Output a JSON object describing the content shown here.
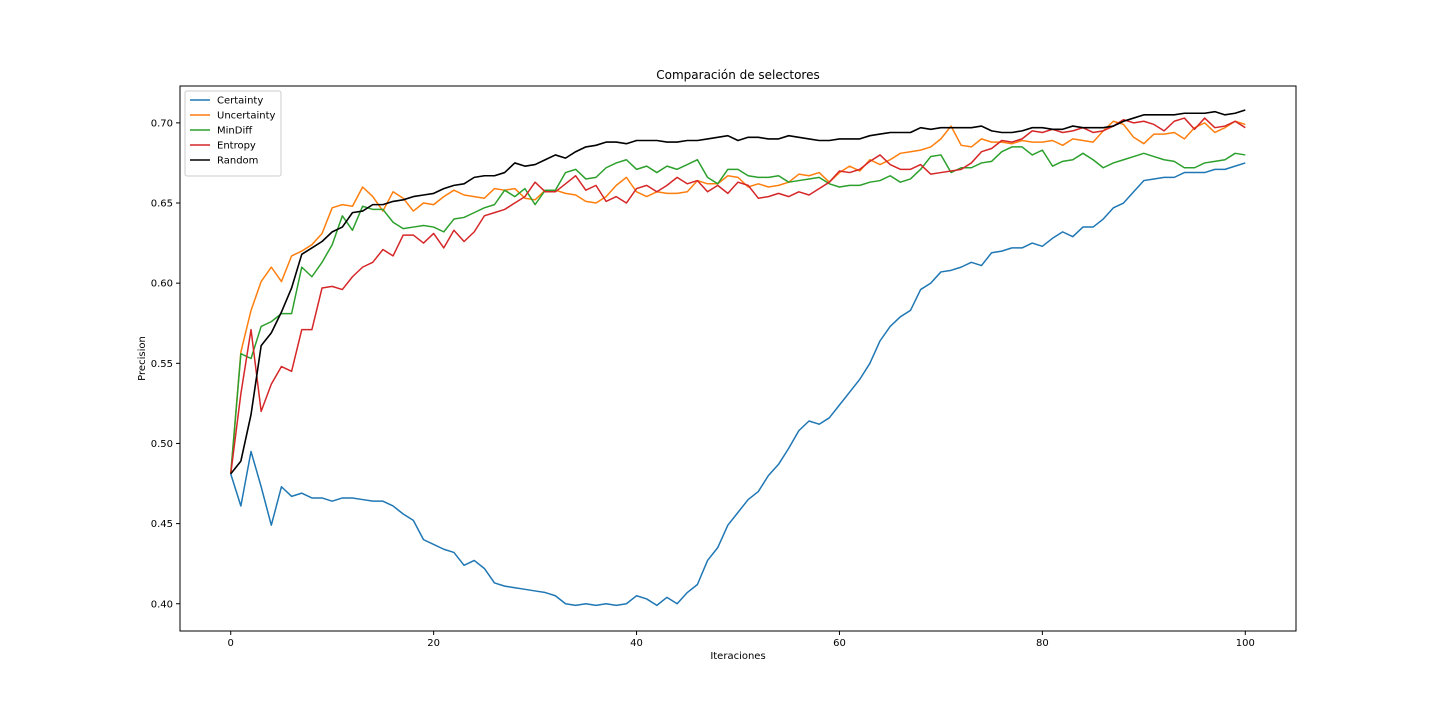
{
  "chart_data": {
    "type": "line",
    "title": "Comparación de selectores",
    "xlabel": "Iteraciones",
    "ylabel": "Precision",
    "xlim": [
      -5,
      105
    ],
    "ylim": [
      0.383,
      0.723
    ],
    "xticks": [
      0,
      20,
      40,
      60,
      80,
      100
    ],
    "yticks": [
      0.4,
      0.45,
      0.5,
      0.55,
      0.6,
      0.65,
      0.7
    ],
    "ytick_labels": [
      "0.40",
      "0.45",
      "0.50",
      "0.55",
      "0.60",
      "0.65",
      "0.70"
    ],
    "grid": false,
    "legend_position": "top-left",
    "series": [
      {
        "name": "Certainty",
        "color": "#1f77b4",
        "values": [
          0.481,
          0.461,
          0.495,
          0.473,
          0.449,
          0.473,
          0.467,
          0.469,
          0.466,
          0.466,
          0.464,
          0.466,
          0.466,
          0.465,
          0.464,
          0.464,
          0.461,
          0.456,
          0.452,
          0.44,
          0.437,
          0.434,
          0.432,
          0.424,
          0.427,
          0.422,
          0.413,
          0.411,
          0.41,
          0.409,
          0.408,
          0.407,
          0.405,
          0.4,
          0.399,
          0.4,
          0.399,
          0.4,
          0.399,
          0.4,
          0.405,
          0.403,
          0.399,
          0.404,
          0.4,
          0.407,
          0.412,
          0.427,
          0.435,
          0.449,
          0.457,
          0.465,
          0.47,
          0.48,
          0.487,
          0.497,
          0.508,
          0.514,
          0.512,
          0.516,
          0.524,
          0.532,
          0.54,
          0.55,
          0.564,
          0.573,
          0.579,
          0.583,
          0.596,
          0.6,
          0.607,
          0.608,
          0.61,
          0.613,
          0.611,
          0.619,
          0.62,
          0.622,
          0.622,
          0.625,
          0.623,
          0.628,
          0.632,
          0.629,
          0.635,
          0.635,
          0.64,
          0.647,
          0.65,
          0.657,
          0.664,
          0.665,
          0.666,
          0.666,
          0.669,
          0.669,
          0.669,
          0.671,
          0.671,
          0.673,
          0.675
        ]
      },
      {
        "name": "Uncertainty",
        "color": "#ff7f0e",
        "values": [
          0.481,
          0.557,
          0.583,
          0.601,
          0.61,
          0.601,
          0.617,
          0.62,
          0.624,
          0.631,
          0.647,
          0.649,
          0.648,
          0.66,
          0.654,
          0.645,
          0.657,
          0.653,
          0.645,
          0.65,
          0.649,
          0.654,
          0.658,
          0.655,
          0.654,
          0.653,
          0.659,
          0.658,
          0.659,
          0.653,
          0.652,
          0.658,
          0.658,
          0.656,
          0.655,
          0.651,
          0.65,
          0.654,
          0.661,
          0.666,
          0.657,
          0.654,
          0.657,
          0.656,
          0.656,
          0.657,
          0.664,
          0.662,
          0.662,
          0.667,
          0.666,
          0.66,
          0.662,
          0.66,
          0.661,
          0.663,
          0.668,
          0.667,
          0.669,
          0.663,
          0.669,
          0.673,
          0.67,
          0.677,
          0.674,
          0.677,
          0.681,
          0.682,
          0.683,
          0.685,
          0.69,
          0.698,
          0.686,
          0.685,
          0.69,
          0.688,
          0.688,
          0.687,
          0.689,
          0.688,
          0.688,
          0.689,
          0.686,
          0.69,
          0.689,
          0.688,
          0.695,
          0.701,
          0.699,
          0.691,
          0.687,
          0.693,
          0.693,
          0.694,
          0.69,
          0.697,
          0.7,
          0.694,
          0.697,
          0.701,
          0.699
        ]
      },
      {
        "name": "MinDiff",
        "color": "#2ca02c",
        "values": [
          0.481,
          0.556,
          0.553,
          0.573,
          0.576,
          0.581,
          0.581,
          0.61,
          0.604,
          0.613,
          0.624,
          0.642,
          0.633,
          0.648,
          0.646,
          0.646,
          0.638,
          0.634,
          0.635,
          0.636,
          0.635,
          0.632,
          0.64,
          0.641,
          0.644,
          0.647,
          0.649,
          0.658,
          0.654,
          0.659,
          0.649,
          0.658,
          0.658,
          0.669,
          0.671,
          0.665,
          0.666,
          0.672,
          0.675,
          0.677,
          0.671,
          0.673,
          0.669,
          0.673,
          0.671,
          0.674,
          0.677,
          0.666,
          0.662,
          0.671,
          0.671,
          0.667,
          0.666,
          0.666,
          0.667,
          0.663,
          0.664,
          0.665,
          0.666,
          0.662,
          0.66,
          0.661,
          0.661,
          0.663,
          0.664,
          0.667,
          0.663,
          0.665,
          0.671,
          0.679,
          0.68,
          0.669,
          0.672,
          0.672,
          0.675,
          0.676,
          0.682,
          0.685,
          0.685,
          0.68,
          0.683,
          0.673,
          0.676,
          0.677,
          0.681,
          0.677,
          0.672,
          0.675,
          0.677,
          0.679,
          0.681,
          0.679,
          0.677,
          0.676,
          0.672,
          0.672,
          0.675,
          0.676,
          0.677,
          0.681,
          0.68
        ]
      },
      {
        "name": "Entropy",
        "color": "#d62728",
        "values": [
          0.481,
          0.531,
          0.571,
          0.52,
          0.537,
          0.548,
          0.545,
          0.571,
          0.571,
          0.597,
          0.598,
          0.596,
          0.604,
          0.61,
          0.613,
          0.621,
          0.617,
          0.63,
          0.63,
          0.625,
          0.631,
          0.622,
          0.633,
          0.626,
          0.632,
          0.642,
          0.644,
          0.646,
          0.65,
          0.654,
          0.663,
          0.657,
          0.657,
          0.662,
          0.667,
          0.658,
          0.661,
          0.651,
          0.654,
          0.65,
          0.659,
          0.661,
          0.657,
          0.661,
          0.666,
          0.662,
          0.664,
          0.657,
          0.661,
          0.656,
          0.663,
          0.661,
          0.653,
          0.654,
          0.656,
          0.654,
          0.657,
          0.655,
          0.659,
          0.663,
          0.67,
          0.669,
          0.671,
          0.676,
          0.68,
          0.674,
          0.671,
          0.671,
          0.674,
          0.668,
          0.669,
          0.67,
          0.671,
          0.675,
          0.682,
          0.684,
          0.689,
          0.688,
          0.69,
          0.695,
          0.694,
          0.696,
          0.694,
          0.695,
          0.697,
          0.694,
          0.695,
          0.698,
          0.702,
          0.7,
          0.701,
          0.699,
          0.695,
          0.701,
          0.703,
          0.696,
          0.703,
          0.697,
          0.698,
          0.701,
          0.697
        ]
      },
      {
        "name": "Random",
        "color": "#000000",
        "values": [
          0.481,
          0.489,
          0.518,
          0.561,
          0.569,
          0.582,
          0.597,
          0.618,
          0.622,
          0.626,
          0.632,
          0.635,
          0.644,
          0.645,
          0.649,
          0.649,
          0.651,
          0.652,
          0.654,
          0.655,
          0.656,
          0.659,
          0.661,
          0.662,
          0.666,
          0.667,
          0.667,
          0.669,
          0.675,
          0.673,
          0.674,
          0.677,
          0.68,
          0.678,
          0.682,
          0.685,
          0.686,
          0.688,
          0.688,
          0.687,
          0.689,
          0.689,
          0.689,
          0.688,
          0.688,
          0.689,
          0.689,
          0.69,
          0.691,
          0.692,
          0.689,
          0.691,
          0.691,
          0.69,
          0.69,
          0.692,
          0.691,
          0.69,
          0.689,
          0.689,
          0.69,
          0.69,
          0.69,
          0.692,
          0.693,
          0.694,
          0.694,
          0.694,
          0.697,
          0.696,
          0.697,
          0.697,
          0.697,
          0.697,
          0.698,
          0.695,
          0.694,
          0.694,
          0.695,
          0.697,
          0.697,
          0.696,
          0.696,
          0.698,
          0.697,
          0.697,
          0.697,
          0.698,
          0.701,
          0.703,
          0.705,
          0.705,
          0.705,
          0.705,
          0.706,
          0.706,
          0.706,
          0.707,
          0.705,
          0.706,
          0.708
        ]
      }
    ]
  }
}
